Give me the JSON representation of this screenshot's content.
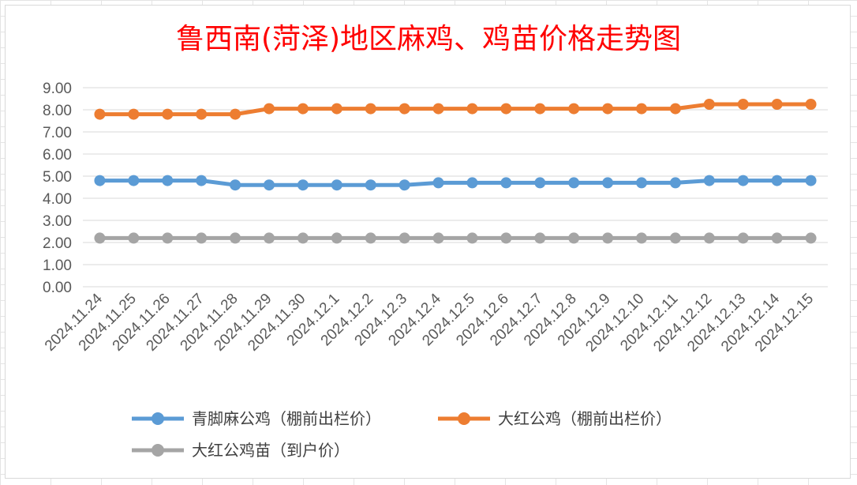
{
  "chart_data": {
    "type": "line",
    "title": "鲁西南(菏泽)地区麻鸡、鸡苗价格走势图",
    "xlabel": "",
    "ylabel": "",
    "ylim": [
      0,
      9
    ],
    "y_ticks": [
      "0.00",
      "1.00",
      "2.00",
      "3.00",
      "4.00",
      "5.00",
      "6.00",
      "7.00",
      "8.00",
      "9.00"
    ],
    "grid": true,
    "legend_position": "bottom",
    "categories": [
      "2024.11.24",
      "2024.11.25",
      "2024.11.26",
      "2024.11.27",
      "2024.11.28",
      "2024.11.29",
      "2024.11.30",
      "2024.12.1",
      "2024.12.2",
      "2024.12.3",
      "2024.12.4",
      "2024.12.5",
      "2024.12.6",
      "2024.12.7",
      "2024.12.8",
      "2024.12.9",
      "2024.12.10",
      "2024.12.11",
      "2024.12.12",
      "2024.12.13",
      "2024.12.14",
      "2024.12.15"
    ],
    "series": [
      {
        "name": "青脚麻公鸡（棚前出栏价）",
        "color": "#5b9bd5",
        "values": [
          4.8,
          4.8,
          4.8,
          4.8,
          4.6,
          4.6,
          4.6,
          4.6,
          4.6,
          4.6,
          4.7,
          4.7,
          4.7,
          4.7,
          4.7,
          4.7,
          4.7,
          4.7,
          4.8,
          4.8,
          4.8,
          4.8
        ]
      },
      {
        "name": "大红公鸡（棚前出栏价）",
        "color": "#ed7d31",
        "values": [
          7.8,
          7.8,
          7.8,
          7.8,
          7.8,
          8.05,
          8.05,
          8.05,
          8.05,
          8.05,
          8.05,
          8.05,
          8.05,
          8.05,
          8.05,
          8.05,
          8.05,
          8.05,
          8.25,
          8.25,
          8.25,
          8.25
        ]
      },
      {
        "name": "大红公鸡苗（到户价）",
        "color": "#a5a5a5",
        "values": [
          2.2,
          2.2,
          2.2,
          2.2,
          2.2,
          2.2,
          2.2,
          2.2,
          2.2,
          2.2,
          2.2,
          2.2,
          2.2,
          2.2,
          2.2,
          2.2,
          2.2,
          2.2,
          2.2,
          2.2,
          2.2,
          2.2
        ]
      }
    ]
  }
}
